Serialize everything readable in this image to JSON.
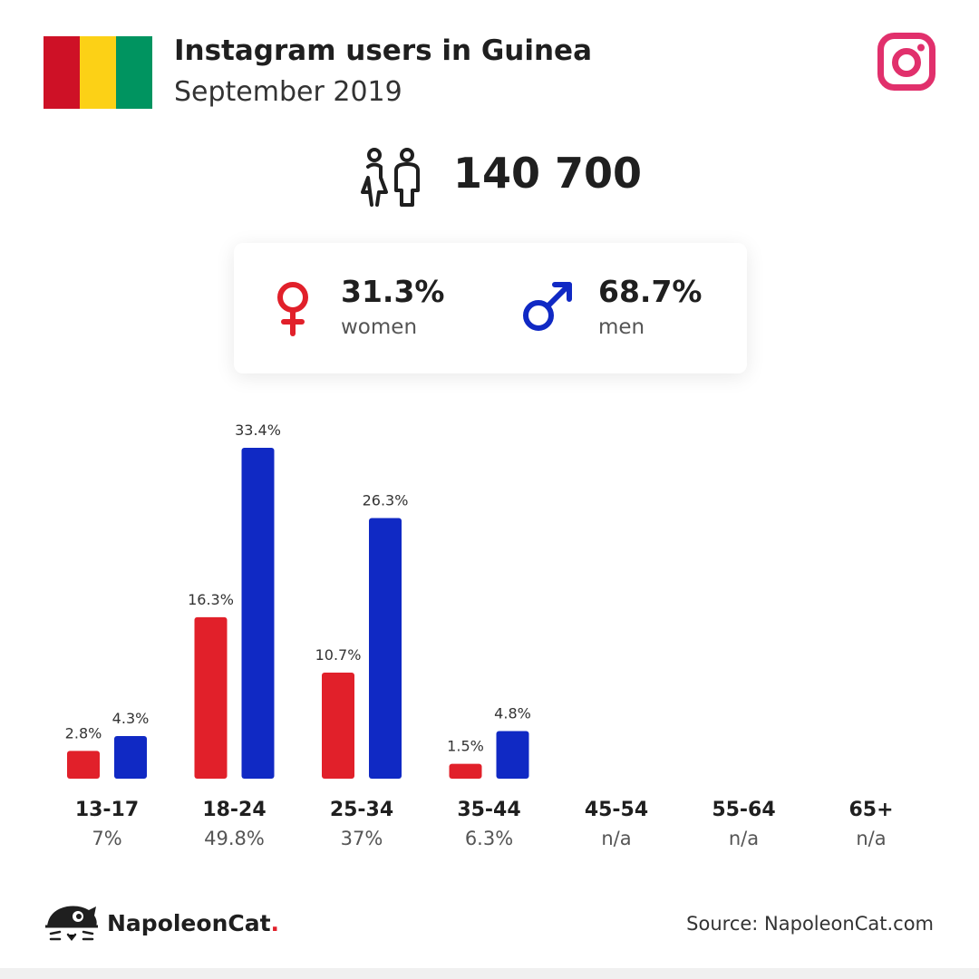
{
  "header": {
    "title": "Instagram users in Guinea",
    "subtitle": "September 2019",
    "flag_colors": [
      "#ce1126",
      "#fcd116",
      "#009460"
    ],
    "platform_icon": "instagram-icon",
    "platform_color": "#e1306c"
  },
  "total": {
    "icon": "users-icon",
    "value": "140 700"
  },
  "gender": {
    "women": {
      "icon": "female-icon",
      "pct": "31.3%",
      "label": "women",
      "color": "#e1202a"
    },
    "men": {
      "icon": "male-icon",
      "pct": "68.7%",
      "label": "men",
      "color": "#1029c4"
    }
  },
  "chart_data": {
    "type": "bar",
    "categories": [
      "13-17",
      "18-24",
      "25-34",
      "35-44",
      "45-54",
      "55-64",
      "65+"
    ],
    "category_totals": [
      "7%",
      "49.8%",
      "37%",
      "6.3%",
      "n/a",
      "n/a",
      "n/a"
    ],
    "series": [
      {
        "values": [
          2.8,
          16.3,
          10.7,
          1.5,
          null,
          null,
          null
        ],
        "labels": [
          "2.8%",
          "16.3%",
          "10.7%",
          "1.5%",
          "",
          "",
          ""
        ],
        "color": "#e1202a"
      },
      {
        "values": [
          4.3,
          33.4,
          26.3,
          4.8,
          null,
          null,
          null
        ],
        "labels": [
          "4.3%",
          "33.4%",
          "26.3%",
          "4.8%",
          "",
          "",
          ""
        ],
        "color": "#1029c4"
      }
    ],
    "title": "",
    "xlabel": "",
    "ylabel": "",
    "grid": false,
    "legend": "none"
  },
  "footer": {
    "brand": "NapoleonCat",
    "brand_dot": ".",
    "logo_icon": "napoleoncat-logo-icon",
    "source": "Source: NapoleonCat.com"
  }
}
